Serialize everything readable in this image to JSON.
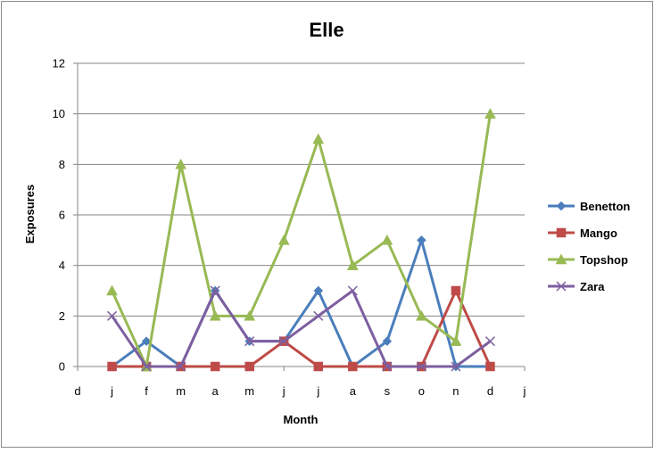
{
  "chart_data": {
    "type": "line",
    "title": "Elle",
    "xlabel": "Month",
    "ylabel": "Exposures",
    "ylim": [
      0,
      12
    ],
    "yticks": [
      0,
      2,
      4,
      6,
      8,
      10,
      12
    ],
    "grid": true,
    "legend_position": "right",
    "x_tick_labels": [
      "d",
      "j",
      "f",
      "m",
      "a",
      "m",
      "j",
      "j",
      "a",
      "s",
      "o",
      "n",
      "d",
      "j"
    ],
    "categories": [
      "j",
      "f",
      "m",
      "a",
      "m",
      "j",
      "j",
      "a",
      "s",
      "o",
      "n",
      "d"
    ],
    "series": [
      {
        "name": "Benetton",
        "color": "#4a7ebb",
        "marker": "diamond",
        "values": [
          0,
          1,
          0,
          3,
          1,
          1,
          3,
          0,
          1,
          5,
          0,
          0
        ]
      },
      {
        "name": "Mango",
        "color": "#be4b48",
        "marker": "square",
        "values": [
          0,
          0,
          0,
          0,
          0,
          1,
          0,
          0,
          0,
          0,
          3,
          0
        ]
      },
      {
        "name": "Topshop",
        "color": "#98b954",
        "marker": "triangle",
        "values": [
          3,
          0,
          8,
          2,
          2,
          5,
          9,
          4,
          5,
          2,
          1,
          10
        ]
      },
      {
        "name": "Zara",
        "color": "#7d5fa0",
        "marker": "x",
        "values": [
          2,
          0,
          0,
          3,
          1,
          1,
          2,
          3,
          0,
          0,
          0,
          1
        ]
      }
    ]
  }
}
